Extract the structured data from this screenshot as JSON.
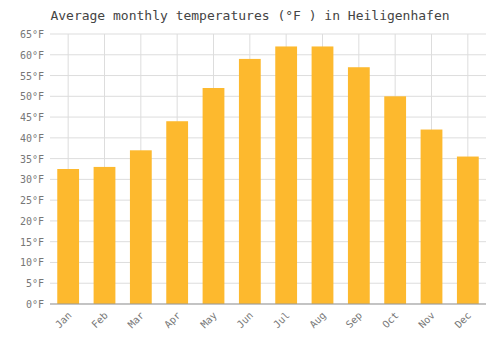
{
  "chart_data": {
    "type": "bar",
    "title": "Average monthly temperatures (°F ) in Heiligenhafen",
    "categories": [
      "Jan",
      "Feb",
      "Mar",
      "Apr",
      "May",
      "Jun",
      "Jul",
      "Aug",
      "Sep",
      "Oct",
      "Nov",
      "Dec"
    ],
    "values": [
      32.5,
      33.0,
      37.0,
      44.0,
      52.0,
      59.0,
      62.0,
      62.0,
      57.0,
      50.0,
      42.0,
      35.5
    ],
    "color": "#FDB92E",
    "ylim": [
      0,
      65
    ],
    "yticks": [
      {
        "value": 0,
        "label": "0°F"
      },
      {
        "value": 5,
        "label": "5°F"
      },
      {
        "value": 10,
        "label": "10°F"
      },
      {
        "value": 15,
        "label": "15°F"
      },
      {
        "value": 20,
        "label": "20°F"
      },
      {
        "value": 25,
        "label": "25°F"
      },
      {
        "value": 30,
        "label": "30°F"
      },
      {
        "value": 35,
        "label": "35°F"
      },
      {
        "value": 40,
        "label": "40°F"
      },
      {
        "value": 45,
        "label": "45°F"
      },
      {
        "value": 50,
        "label": "50°F"
      },
      {
        "value": 55,
        "label": "55°F"
      },
      {
        "value": 60,
        "label": "60°F"
      },
      {
        "value": 65,
        "label": "65°F"
      }
    ],
    "grid": true
  }
}
